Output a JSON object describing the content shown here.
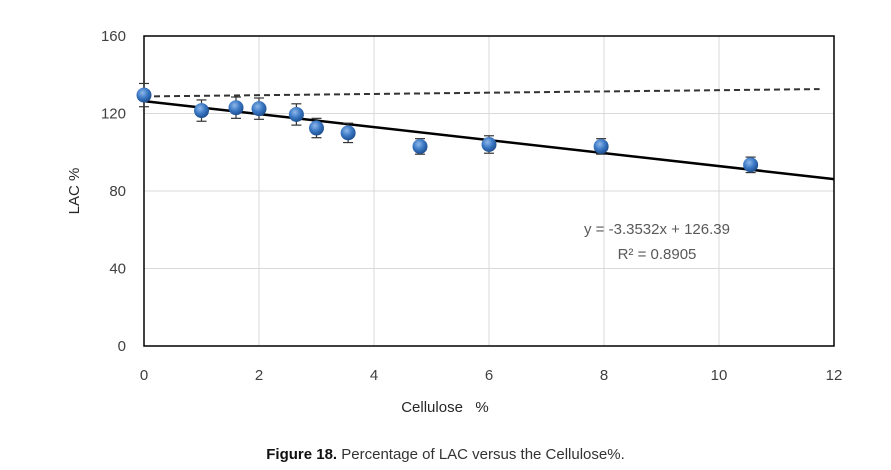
{
  "chart_data": {
    "type": "scatter",
    "title": "",
    "xlabel": "Cellulose   %",
    "ylabel": "LAC %",
    "xlim": [
      0,
      12
    ],
    "ylim": [
      0,
      160
    ],
    "xticks": [
      "0",
      "2",
      "4",
      "6",
      "8",
      "10",
      "12"
    ],
    "yticks": [
      "0",
      "40",
      "80",
      "120",
      "160"
    ],
    "grid": true,
    "series": [
      {
        "name": "LAC",
        "color": "#3a78c4",
        "x": [
          0,
          1.0,
          1.6,
          2.0,
          2.65,
          3.0,
          3.55,
          4.8,
          6.0,
          7.95,
          10.55
        ],
        "y": [
          129.5,
          121.5,
          123,
          122.5,
          119.5,
          112.5,
          110,
          103,
          104,
          103,
          93.5
        ],
        "error": [
          6,
          5.5,
          5.5,
          5.5,
          5.5,
          5,
          5,
          4,
          4.5,
          4,
          4
        ]
      }
    ],
    "trendline": {
      "type": "linear",
      "slope": -3.3532,
      "intercept": 126.39,
      "x_range": [
        0,
        12
      ],
      "color": "#000000"
    },
    "dashed_line": {
      "x": [
        0,
        11.75
      ],
      "y": [
        128.8,
        132.6
      ],
      "color": "#333333"
    },
    "annotations": [
      "y = -3.3532x + 126.39",
      "R² = 0.8905"
    ]
  },
  "caption": {
    "label": "Figure 18.",
    "text": " Percentage of LAC versus the Cellulose%."
  }
}
